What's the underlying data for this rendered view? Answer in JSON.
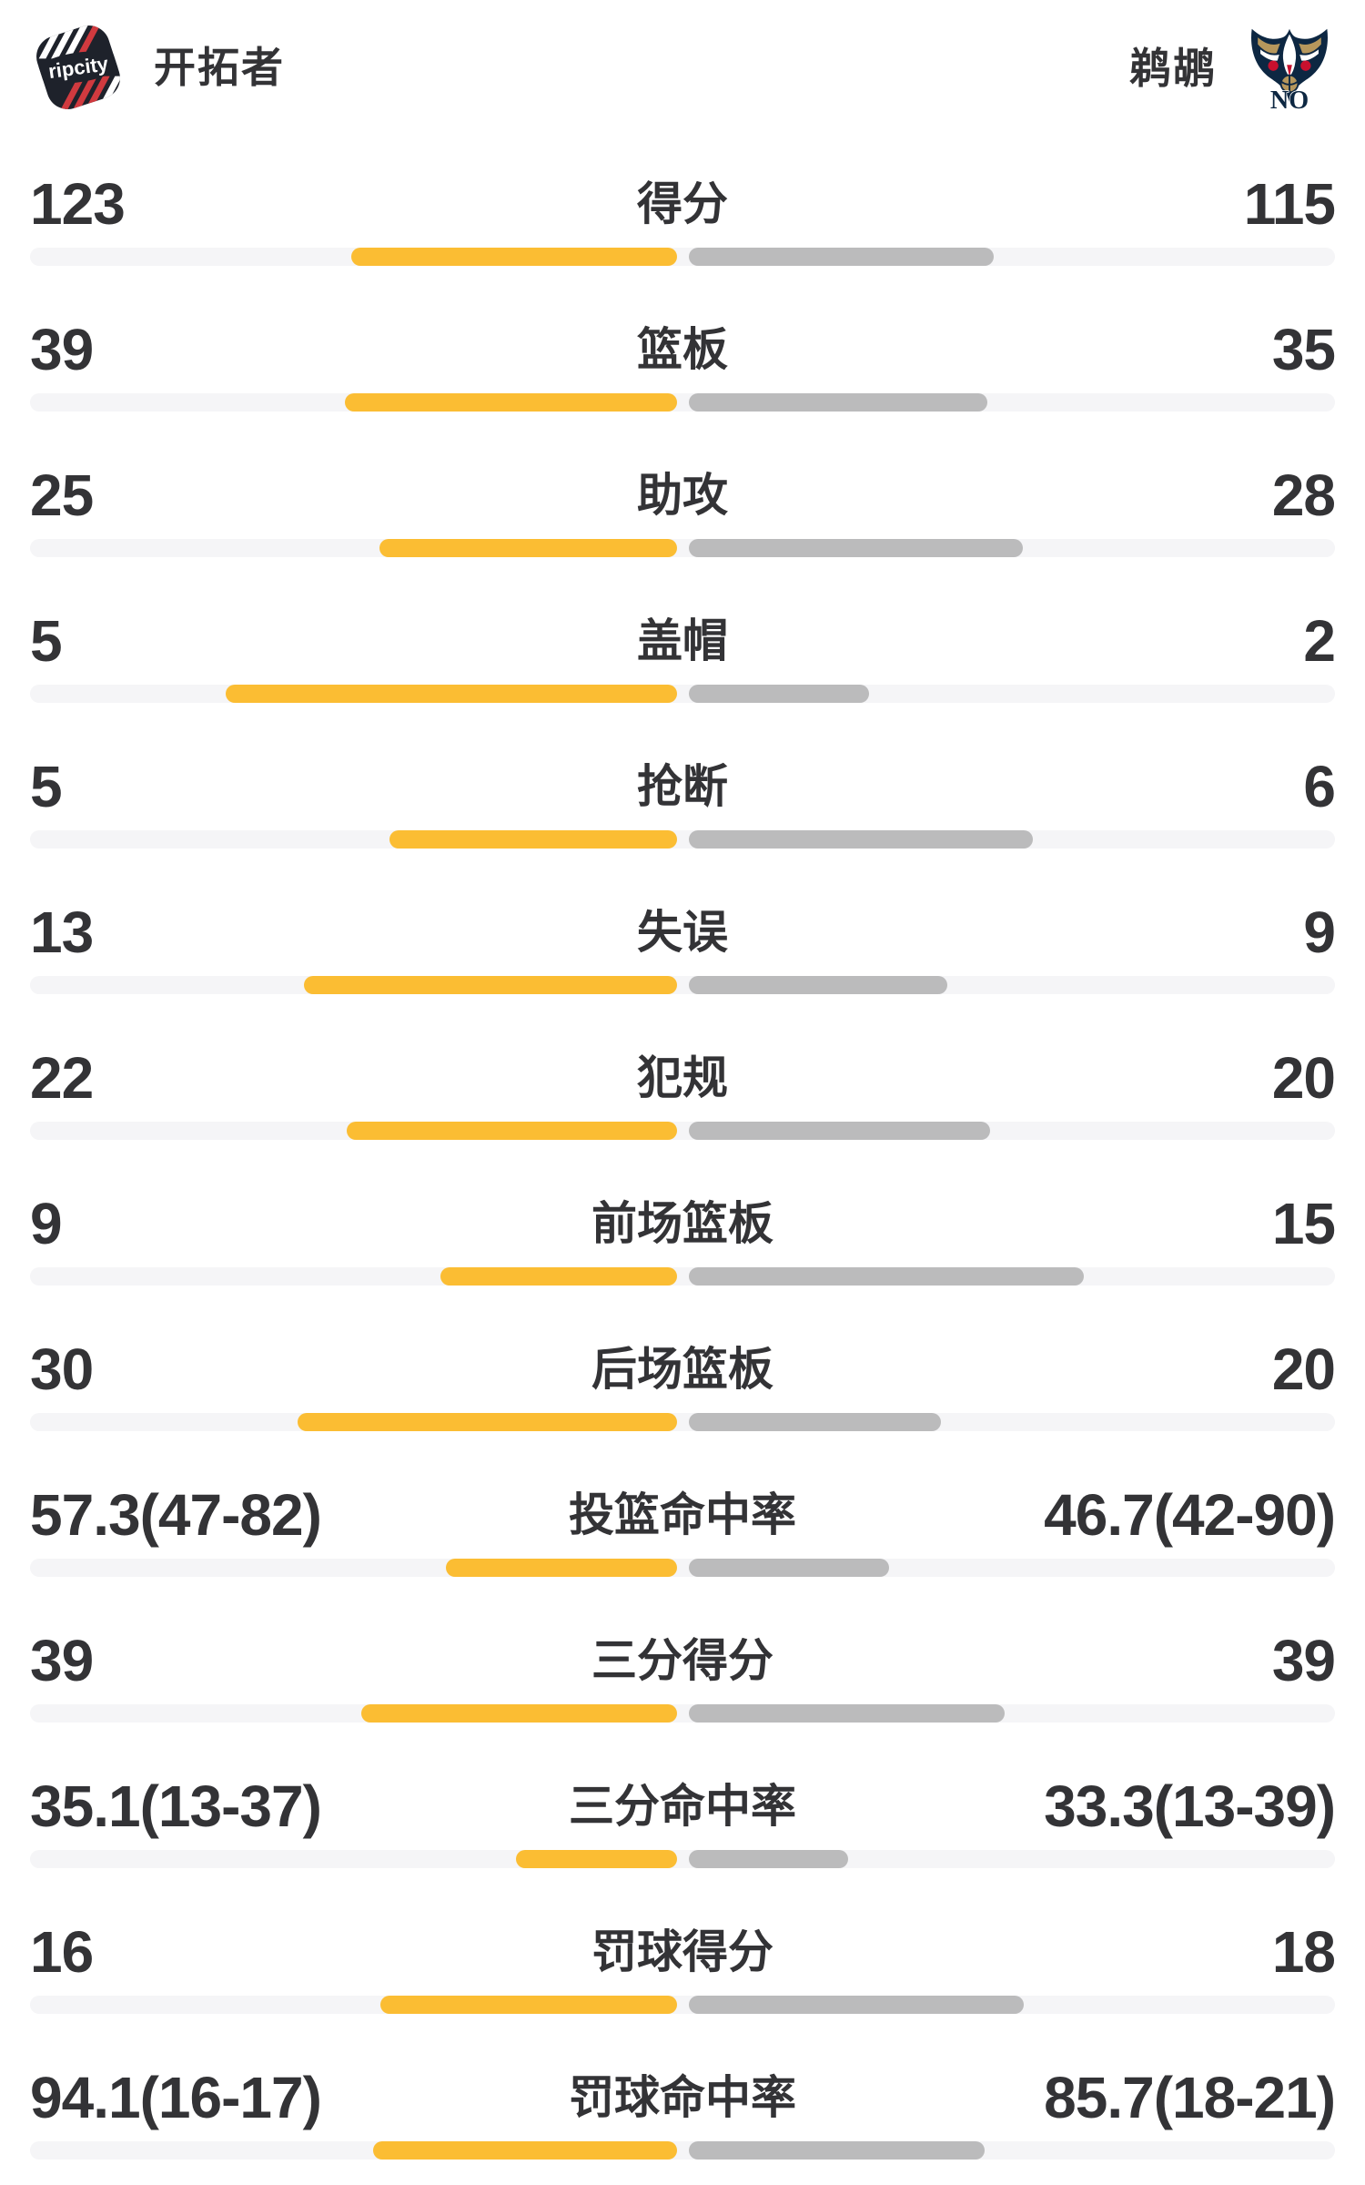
{
  "header": {
    "home": {
      "name": "开拓者",
      "logo": "trail-blazers-ripcity-logo"
    },
    "away": {
      "name": "鹈鹕",
      "logo": "pelicans-no-logo"
    }
  },
  "colors": {
    "home_bar": "#FBBD33",
    "away_bar": "#BBBBBC",
    "track": "#F5F5F7",
    "text": "#333336",
    "blazers_dark": "#1E222B",
    "blazers_red": "#D03A3F",
    "pelicans_navy": "#0D2742",
    "pelicans_gold": "#B6975C",
    "pelicans_red": "#C8102E",
    "white": "#FFFFFF"
  },
  "chart_data": {
    "type": "bar",
    "orientation": "horizontal-paired",
    "title": "",
    "legend": [
      "开拓者",
      "鹈鹕"
    ],
    "bar_note": "bar_pct values are bar length as percent of half-track width, bars grow outward from center; home=yellow (left), away=gray (right)",
    "rows": [
      {
        "label": "得分",
        "home": {
          "display": "123",
          "value": 123
        },
        "away": {
          "display": "115",
          "value": 115
        },
        "home_bar_pct": 50.4,
        "away_bar_pct": 47.1
      },
      {
        "label": "篮板",
        "home": {
          "display": "39",
          "value": 39
        },
        "away": {
          "display": "35",
          "value": 35
        },
        "home_bar_pct": 51.4,
        "away_bar_pct": 46.2
      },
      {
        "label": "助攻",
        "home": {
          "display": "25",
          "value": 25
        },
        "away": {
          "display": "28",
          "value": 28
        },
        "home_bar_pct": 46.0,
        "away_bar_pct": 51.6
      },
      {
        "label": "盖帽",
        "home": {
          "display": "5",
          "value": 5
        },
        "away": {
          "display": "2",
          "value": 2
        },
        "home_bar_pct": 69.7,
        "away_bar_pct": 27.9
      },
      {
        "label": "抢断",
        "home": {
          "display": "5",
          "value": 5
        },
        "away": {
          "display": "6",
          "value": 6
        },
        "home_bar_pct": 44.4,
        "away_bar_pct": 53.2
      },
      {
        "label": "失误",
        "home": {
          "display": "13",
          "value": 13
        },
        "away": {
          "display": "9",
          "value": 9
        },
        "home_bar_pct": 57.7,
        "away_bar_pct": 39.9
      },
      {
        "label": "犯规",
        "home": {
          "display": "22",
          "value": 22
        },
        "away": {
          "display": "20",
          "value": 20
        },
        "home_bar_pct": 51.1,
        "away_bar_pct": 46.5
      },
      {
        "label": "前场篮板",
        "home": {
          "display": "9",
          "value": 9
        },
        "away": {
          "display": "15",
          "value": 15
        },
        "home_bar_pct": 36.6,
        "away_bar_pct": 61.0
      },
      {
        "label": "后场篮板",
        "home": {
          "display": "30",
          "value": 30
        },
        "away": {
          "display": "20",
          "value": 20
        },
        "home_bar_pct": 58.6,
        "away_bar_pct": 39.0
      },
      {
        "label": "投篮命中率",
        "home": {
          "display": "57.3(47-82)",
          "value": 57.3
        },
        "away": {
          "display": "46.7(42-90)",
          "value": 46.7
        },
        "home_bar_pct": 35.7,
        "away_bar_pct": 31.0
      },
      {
        "label": "三分得分",
        "home": {
          "display": "39",
          "value": 39
        },
        "away": {
          "display": "39",
          "value": 39
        },
        "home_bar_pct": 48.8,
        "away_bar_pct": 48.8
      },
      {
        "label": "三分命中率",
        "home": {
          "display": "35.1(13-37)",
          "value": 35.1
        },
        "away": {
          "display": "33.3(13-39)",
          "value": 33.3
        },
        "home_bar_pct": 24.9,
        "away_bar_pct": 24.6
      },
      {
        "label": "罚球得分",
        "home": {
          "display": "16",
          "value": 16
        },
        "away": {
          "display": "18",
          "value": 18
        },
        "home_bar_pct": 45.9,
        "away_bar_pct": 51.7
      },
      {
        "label": "罚球命中率",
        "home": {
          "display": "94.1(16-17)",
          "value": 94.1
        },
        "away": {
          "display": "85.7(18-21)",
          "value": 85.7
        },
        "home_bar_pct": 47.0,
        "away_bar_pct": 45.7
      }
    ]
  }
}
